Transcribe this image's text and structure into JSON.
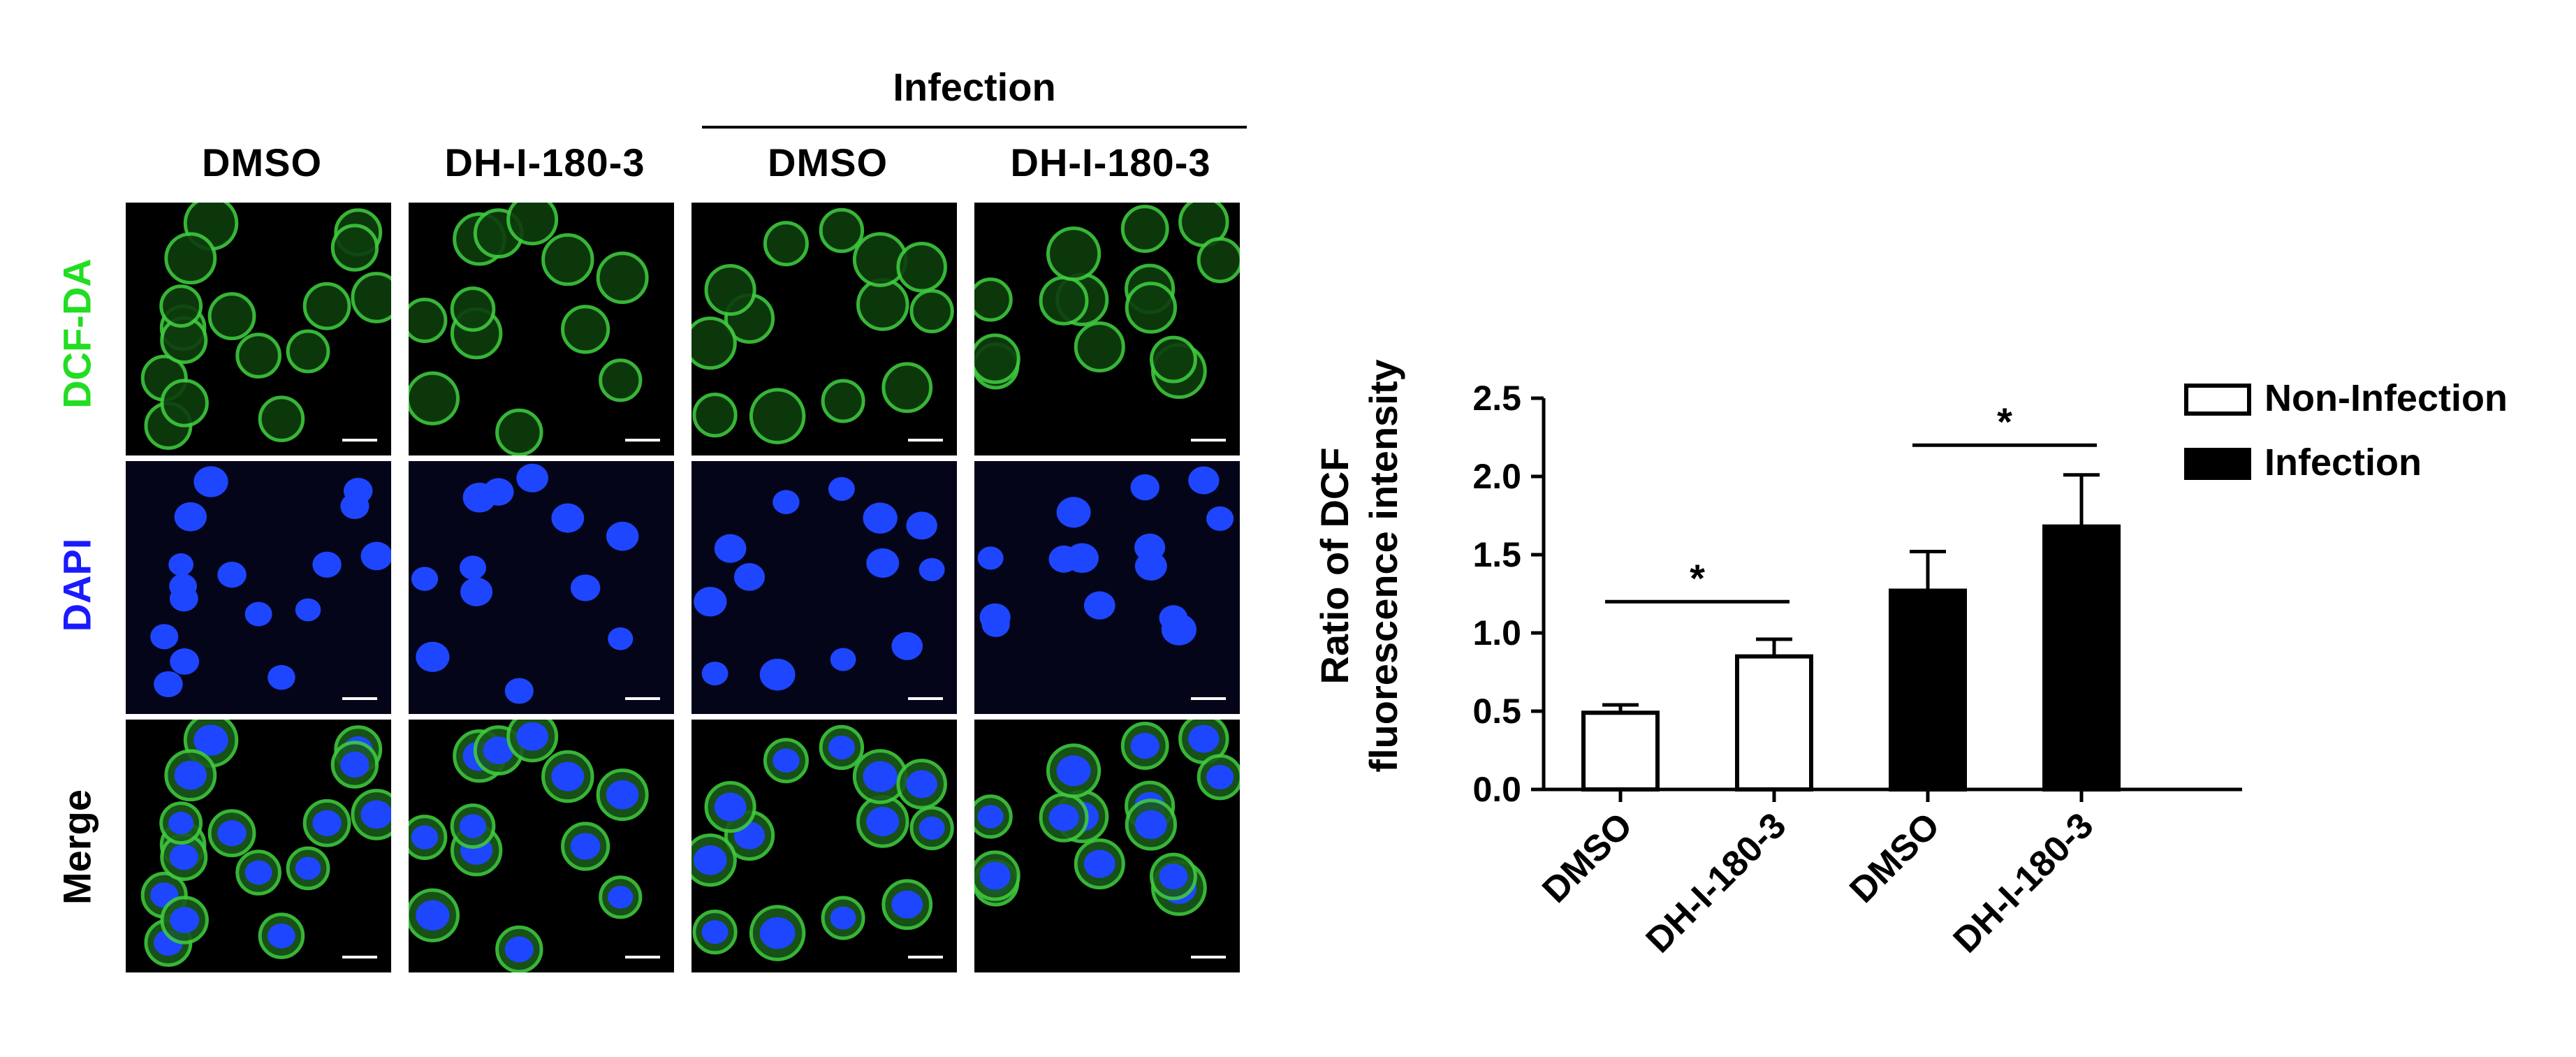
{
  "figure": {
    "group_header": "Infection",
    "columns": [
      "DMSO",
      "DH-I-180-3",
      "DMSO",
      "DH-I-180-3"
    ],
    "rows": [
      {
        "label": "DCF-DA",
        "color": "#22dd22"
      },
      {
        "label": "DAPI",
        "color": "#1a1aff"
      },
      {
        "label": "Merge",
        "color": "#000000"
      }
    ],
    "stain_colors": {
      "dcf": "#3ec93e",
      "dapi": "#1e46ff",
      "background_dapi": "#05051a"
    }
  },
  "chart_data": {
    "type": "bar",
    "categories": [
      "DMSO",
      "DH-I-180-3",
      "DMSO",
      "DH-I-180-3"
    ],
    "series": [
      {
        "name": "Non-Infection",
        "values": [
          0.49,
          0.85,
          null,
          null
        ],
        "errors": [
          0.05,
          0.11,
          null,
          null
        ],
        "fill": "#ffffff"
      },
      {
        "name": "Infection",
        "values": [
          null,
          null,
          1.27,
          1.68
        ],
        "errors": [
          null,
          null,
          0.25,
          0.33
        ],
        "fill": "#000000"
      }
    ],
    "ylabel_line1": "Ratio of DCF",
    "ylabel_line2": "fluorescence intensity",
    "ylim": [
      0,
      2.5
    ],
    "yticks": [
      "0.0",
      "0.5",
      "1.0",
      "1.5",
      "2.0",
      "2.5"
    ],
    "significance": [
      {
        "from": 0,
        "to": 1,
        "y": 1.2,
        "label": "*"
      },
      {
        "from": 2,
        "to": 3,
        "y": 2.2,
        "label": "*"
      }
    ],
    "legend_position": "top-right",
    "grid": false
  }
}
